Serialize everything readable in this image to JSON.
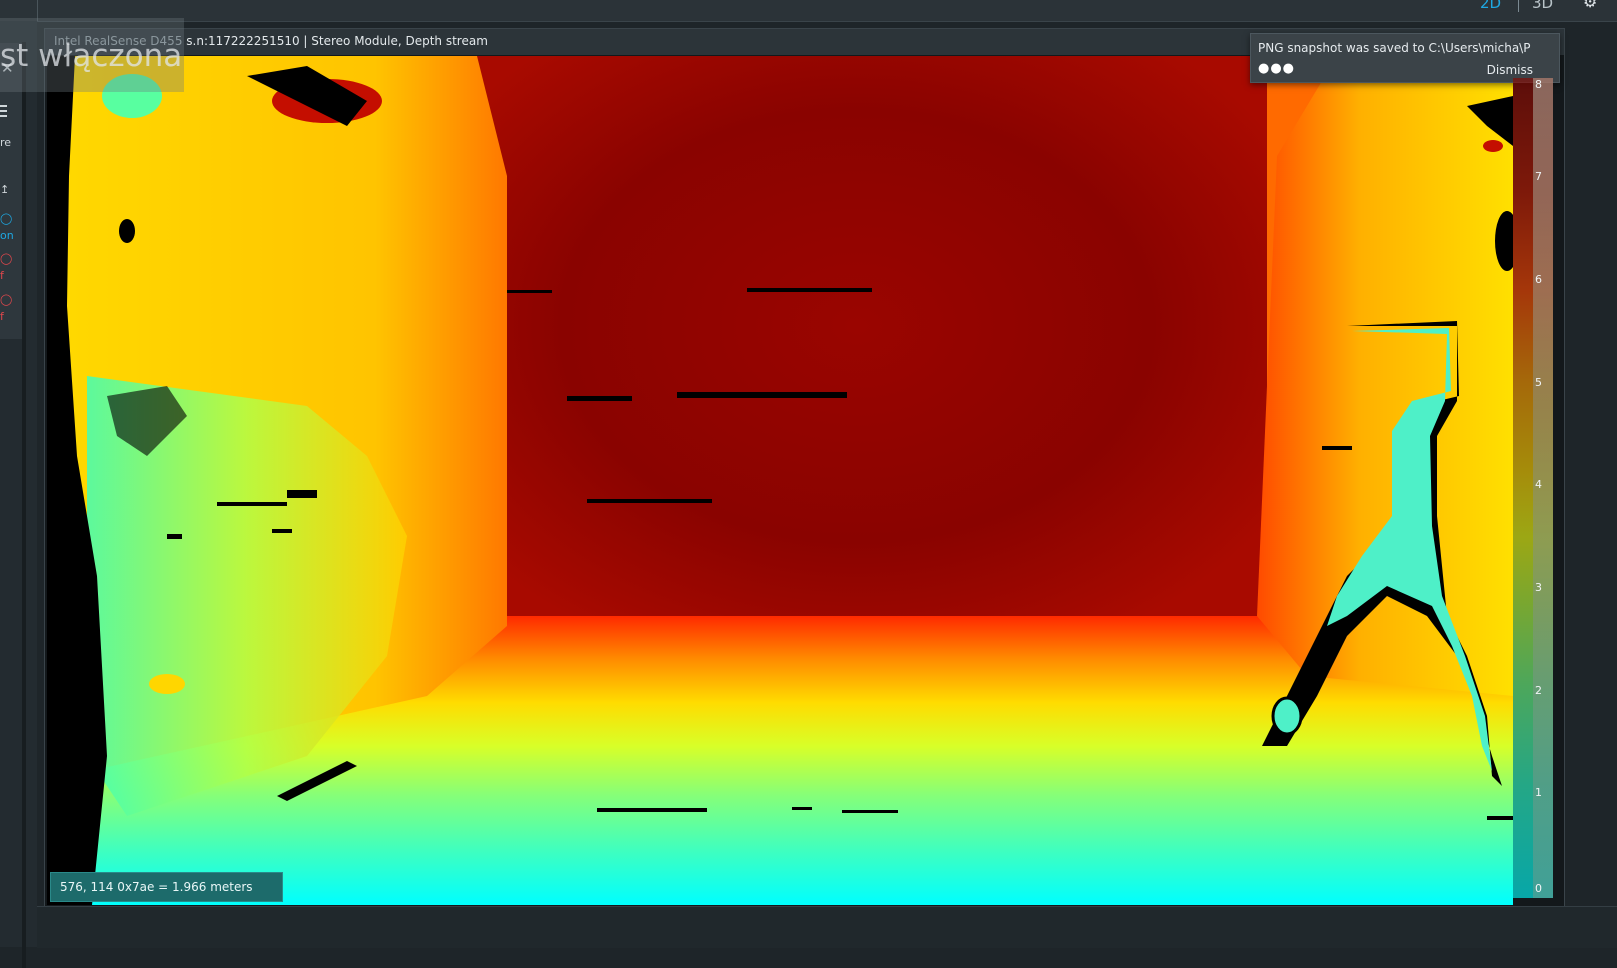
{
  "topbar": {
    "mode_2d": "2D",
    "mode_3d": "3D",
    "settings_icon": "gear-icon"
  },
  "sidebar": {
    "close_symbol": "✕",
    "menu_icon": "hamburger-icon",
    "items": [
      {
        "label": "re",
        "color": "#cfd6da"
      },
      {
        "label": "on",
        "color": "#1ea7e1"
      },
      {
        "label": "f",
        "color": "#e0474c"
      },
      {
        "label": "f",
        "color": "#e0474c"
      }
    ]
  },
  "overlay": {
    "fragment_text": "st włączona"
  },
  "stream": {
    "device": "Intel RealSense D455",
    "details": "s.n:117222251510 | Stereo Module, Depth stream"
  },
  "notification": {
    "message": "PNG snapshot was saved to C:\\Users\\micha\\P",
    "more": "●●●",
    "dismiss": "Dismiss"
  },
  "colorbar": {
    "labels": [
      "8",
      "7",
      "6",
      "5",
      "4",
      "3",
      "2",
      "1",
      "0"
    ],
    "max": 8,
    "min": 0
  },
  "readout": {
    "text": "576, 114 0x7ae = 1.966 meters"
  },
  "colors": {
    "accent": "#1ea7e1",
    "off": "#e0474c",
    "readout_bg": "#1d6b6b"
  }
}
